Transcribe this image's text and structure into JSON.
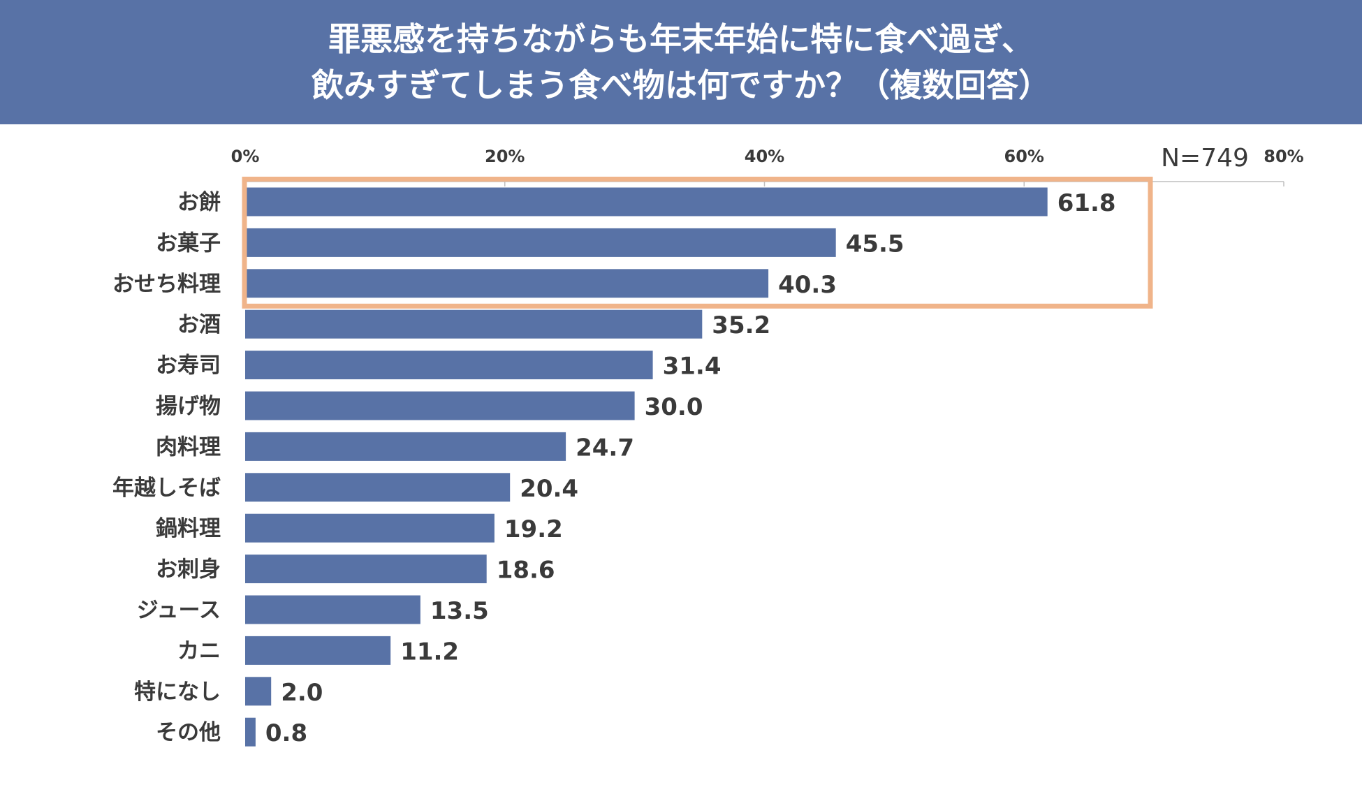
{
  "title": {
    "line1": "罪悪感を持ちながらも年末年始に特に食べ過ぎ、",
    "line2": "飲みすぎてしまう食べ物は何ですか？（複数回答）"
  },
  "sample_size": "N=749",
  "colors": {
    "header_bg": "#5872a6",
    "bar": "#5872a6",
    "highlight_box": "#f0b48a",
    "text": "#3a3a3a",
    "axis": "#bfbfbf"
  },
  "chart_data": {
    "type": "bar",
    "orientation": "horizontal",
    "title": "罪悪感を持ちながらも年末年始に特に食べ過ぎ、飲みすぎてしまう食べ物は何ですか？（複数回答）",
    "unit": "%",
    "xlim": [
      0,
      80
    ],
    "ticks": [
      0,
      20,
      40,
      60,
      80
    ],
    "tick_labels": [
      "0%",
      "20%",
      "40%",
      "60%",
      "80%"
    ],
    "categories": [
      "お餅",
      "お菓子",
      "おせち料理",
      "お酒",
      "お寿司",
      "揚げ物",
      "肉料理",
      "年越しそば",
      "鍋料理",
      "お刺身",
      "ジュース",
      "カニ",
      "特になし",
      "その他"
    ],
    "values": [
      61.8,
      45.5,
      40.3,
      35.2,
      31.4,
      30.0,
      24.7,
      20.4,
      19.2,
      18.6,
      13.5,
      11.2,
      2.0,
      0.8
    ],
    "value_labels": [
      "61.8",
      "45.5",
      "40.3",
      "35.2",
      "31.4",
      "30.0",
      "24.7",
      "20.4",
      "19.2",
      "18.6",
      "13.5",
      "11.2",
      "2.0",
      "0.8"
    ],
    "highlighted_top_n": 3
  }
}
